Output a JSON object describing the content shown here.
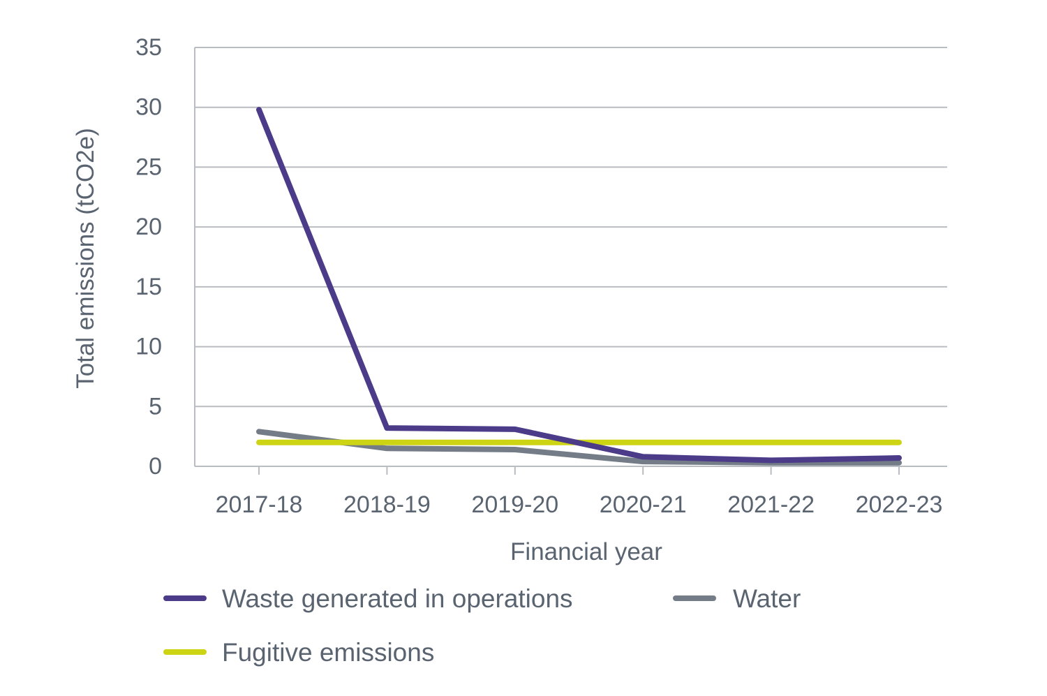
{
  "chart_data": {
    "type": "line",
    "title": "",
    "xlabel": "Financial year",
    "ylabel": "Total emissions (tCO2e)",
    "categories": [
      "2017-18",
      "2018-19",
      "2019-20",
      "2020-21",
      "2021-22",
      "2022-23"
    ],
    "ylim": [
      0,
      35
    ],
    "yticks": [
      0,
      5,
      10,
      15,
      20,
      25,
      30,
      35
    ],
    "ytick_labels": [
      "0",
      "5",
      "10",
      "15",
      "20",
      "25",
      "30",
      "35"
    ],
    "grid": true,
    "legend_position": "bottom",
    "series": [
      {
        "name": "Waste generated in operations",
        "color": "#4b3b88",
        "values": [
          29.8,
          3.2,
          3.1,
          0.8,
          0.5,
          0.7
        ]
      },
      {
        "name": "Water",
        "color": "#747d87",
        "values": [
          2.9,
          1.5,
          1.4,
          0.4,
          0.3,
          0.3
        ]
      },
      {
        "name": "Fugitive emissions",
        "color": "#cdd413",
        "values": [
          2.0,
          2.0,
          2.0,
          2.0,
          2.0,
          2.0
        ]
      }
    ]
  }
}
